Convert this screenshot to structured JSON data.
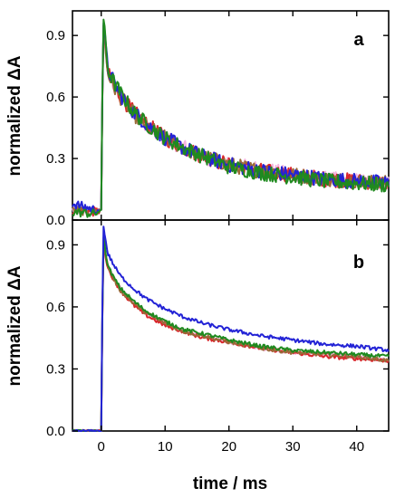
{
  "colors": {
    "pink": "#f6b3df",
    "red": "#d9262b",
    "brown": "#9a6a38",
    "blue": "#2323d6",
    "green": "#1f8a1f"
  },
  "chart_data": [
    {
      "type": "line",
      "panel_label": "a",
      "xlabel": "",
      "ylabel": "normalized ΔA",
      "xlim": [
        -4.5,
        45
      ],
      "ylim": [
        0,
        1.02
      ],
      "xticks": [
        0,
        10,
        20,
        30,
        40
      ],
      "yticks": [
        {
          "value": 0.0,
          "label": "0.0"
        },
        {
          "value": 0.3,
          "label": "0.3"
        },
        {
          "value": 0.6,
          "label": "0.6"
        },
        {
          "value": 0.9,
          "label": "0.9"
        }
      ],
      "grid": false,
      "legend": "none",
      "series": [
        {
          "color": "#f6b3df",
          "x": [
            -4.5,
            -1,
            0,
            0.3,
            1,
            2,
            3,
            5,
            7,
            10,
            13,
            16,
            20,
            25,
            30,
            35,
            40,
            45
          ],
          "y": [
            0.05,
            0.04,
            0.05,
            0.96,
            0.73,
            0.66,
            0.61,
            0.53,
            0.47,
            0.4,
            0.35,
            0.31,
            0.27,
            0.25,
            0.22,
            0.2,
            0.19,
            0.18
          ]
        },
        {
          "color": "#d9262b",
          "x": [
            -4.5,
            -1,
            0,
            0.3,
            1,
            2,
            3,
            5,
            7,
            10,
            13,
            16,
            20,
            25,
            30,
            35,
            40,
            45
          ],
          "y": [
            0.05,
            0.04,
            0.05,
            0.97,
            0.72,
            0.65,
            0.6,
            0.53,
            0.47,
            0.4,
            0.35,
            0.31,
            0.27,
            0.24,
            0.22,
            0.2,
            0.19,
            0.18
          ]
        },
        {
          "color": "#9a6a38",
          "x": [
            -4.5,
            -1,
            0,
            0.3,
            1,
            2,
            3,
            5,
            7,
            10,
            13,
            16,
            20,
            25,
            30,
            35,
            40,
            45
          ],
          "y": [
            0.05,
            0.04,
            0.05,
            0.97,
            0.72,
            0.65,
            0.6,
            0.52,
            0.46,
            0.4,
            0.35,
            0.31,
            0.27,
            0.24,
            0.22,
            0.2,
            0.19,
            0.18
          ]
        },
        {
          "color": "#2323d6",
          "x": [
            -4.5,
            -1,
            0,
            0.3,
            1,
            2,
            3,
            5,
            7,
            10,
            13,
            16,
            20,
            25,
            30,
            35,
            40,
            45
          ],
          "y": [
            0.08,
            0.05,
            0.05,
            0.98,
            0.74,
            0.67,
            0.61,
            0.53,
            0.47,
            0.4,
            0.35,
            0.31,
            0.27,
            0.24,
            0.22,
            0.2,
            0.19,
            0.18
          ]
        },
        {
          "color": "#1f8a1f",
          "x": [
            -4.5,
            -1,
            0,
            0.3,
            1,
            2,
            3,
            5,
            7,
            10,
            13,
            16,
            20,
            25,
            30,
            35,
            40,
            45
          ],
          "y": [
            0.04,
            0.03,
            0.05,
            1.0,
            0.74,
            0.67,
            0.62,
            0.53,
            0.47,
            0.4,
            0.35,
            0.31,
            0.26,
            0.23,
            0.21,
            0.19,
            0.18,
            0.17
          ]
        }
      ]
    },
    {
      "type": "line",
      "panel_label": "b",
      "xlabel": "time / ms",
      "ylabel": "normalized ΔA",
      "xlim": [
        -4.5,
        45
      ],
      "ylim": [
        0,
        1.02
      ],
      "xticks": [
        0,
        10,
        20,
        30,
        40
      ],
      "yticks": [
        {
          "value": 0.0,
          "label": "0.0"
        },
        {
          "value": 0.3,
          "label": "0.3"
        },
        {
          "value": 0.6,
          "label": "0.6"
        },
        {
          "value": 0.9,
          "label": "0.9"
        }
      ],
      "grid": false,
      "legend": "none",
      "series": [
        {
          "color": "#f6b3df",
          "x": [
            -4.5,
            -1,
            0,
            0.3,
            1,
            2,
            3,
            5,
            7,
            10,
            13,
            16,
            20,
            25,
            30,
            35,
            40,
            45
          ],
          "y": [
            0.0,
            0.0,
            0.0,
            0.93,
            0.8,
            0.74,
            0.69,
            0.62,
            0.57,
            0.52,
            0.48,
            0.46,
            0.43,
            0.4,
            0.38,
            0.37,
            0.36,
            0.34
          ]
        },
        {
          "color": "#d9262b",
          "x": [
            -4.5,
            -1,
            0,
            0.3,
            1,
            2,
            3,
            5,
            7,
            10,
            13,
            16,
            20,
            25,
            30,
            35,
            40,
            45
          ],
          "y": [
            0.0,
            0.0,
            0.0,
            0.92,
            0.79,
            0.73,
            0.68,
            0.61,
            0.56,
            0.51,
            0.48,
            0.45,
            0.43,
            0.4,
            0.38,
            0.36,
            0.35,
            0.34
          ]
        },
        {
          "color": "#9a6a38",
          "x": [
            -4.5,
            -1,
            0,
            0.3,
            1,
            2,
            3,
            5,
            7,
            10,
            13,
            16,
            20,
            25,
            30,
            35,
            40,
            45
          ],
          "y": [
            0.0,
            0.0,
            0.0,
            0.92,
            0.8,
            0.73,
            0.68,
            0.62,
            0.57,
            0.52,
            0.48,
            0.46,
            0.43,
            0.4,
            0.38,
            0.37,
            0.36,
            0.34
          ]
        },
        {
          "color": "#1f8a1f",
          "x": [
            -4.5,
            -1,
            0,
            0.3,
            1,
            2,
            3,
            5,
            7,
            10,
            13,
            16,
            20,
            25,
            30,
            35,
            40,
            45
          ],
          "y": [
            0.0,
            0.0,
            0.0,
            0.95,
            0.8,
            0.74,
            0.69,
            0.63,
            0.58,
            0.53,
            0.49,
            0.47,
            0.44,
            0.41,
            0.39,
            0.38,
            0.37,
            0.36
          ]
        },
        {
          "color": "#2323d6",
          "x": [
            -4.5,
            -1,
            0,
            0.3,
            1,
            2,
            3,
            5,
            7,
            10,
            13,
            16,
            20,
            25,
            30,
            35,
            40,
            45
          ],
          "y": [
            0.0,
            0.0,
            0.0,
            1.0,
            0.86,
            0.8,
            0.75,
            0.69,
            0.64,
            0.59,
            0.55,
            0.52,
            0.49,
            0.46,
            0.44,
            0.42,
            0.41,
            0.39
          ]
        }
      ]
    }
  ]
}
